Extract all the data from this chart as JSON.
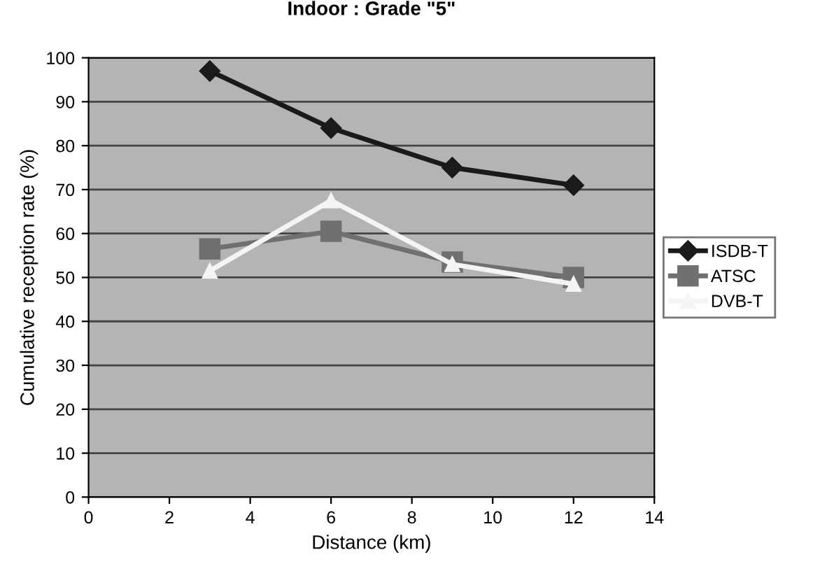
{
  "chart_data": {
    "type": "line",
    "title": "Indoor : Grade \"5\"",
    "xlabel": "Distance (km)",
    "ylabel": "Cumulative reception rate (%)",
    "x": [
      3,
      6,
      9,
      12
    ],
    "series": [
      {
        "name": "ISDB-T",
        "color": "#1a1a1a",
        "marker": "diamond",
        "values": [
          97,
          84,
          75,
          71
        ]
      },
      {
        "name": "ATSC",
        "color": "#707070",
        "marker": "square",
        "values": [
          56.5,
          60.5,
          53.5,
          50
        ]
      },
      {
        "name": "DVB-T",
        "color": "#f4f4f4",
        "marker": "triangle",
        "values": [
          51.5,
          67.5,
          53,
          48.5
        ]
      }
    ],
    "xlim": [
      0,
      14
    ],
    "xticks": [
      0,
      2,
      4,
      6,
      8,
      10,
      12,
      14
    ],
    "ylim": [
      0,
      100
    ],
    "yticks": [
      0,
      10,
      20,
      30,
      40,
      50,
      60,
      70,
      80,
      90,
      100
    ],
    "grid": "y",
    "legend": "right",
    "line_style": "solid"
  }
}
